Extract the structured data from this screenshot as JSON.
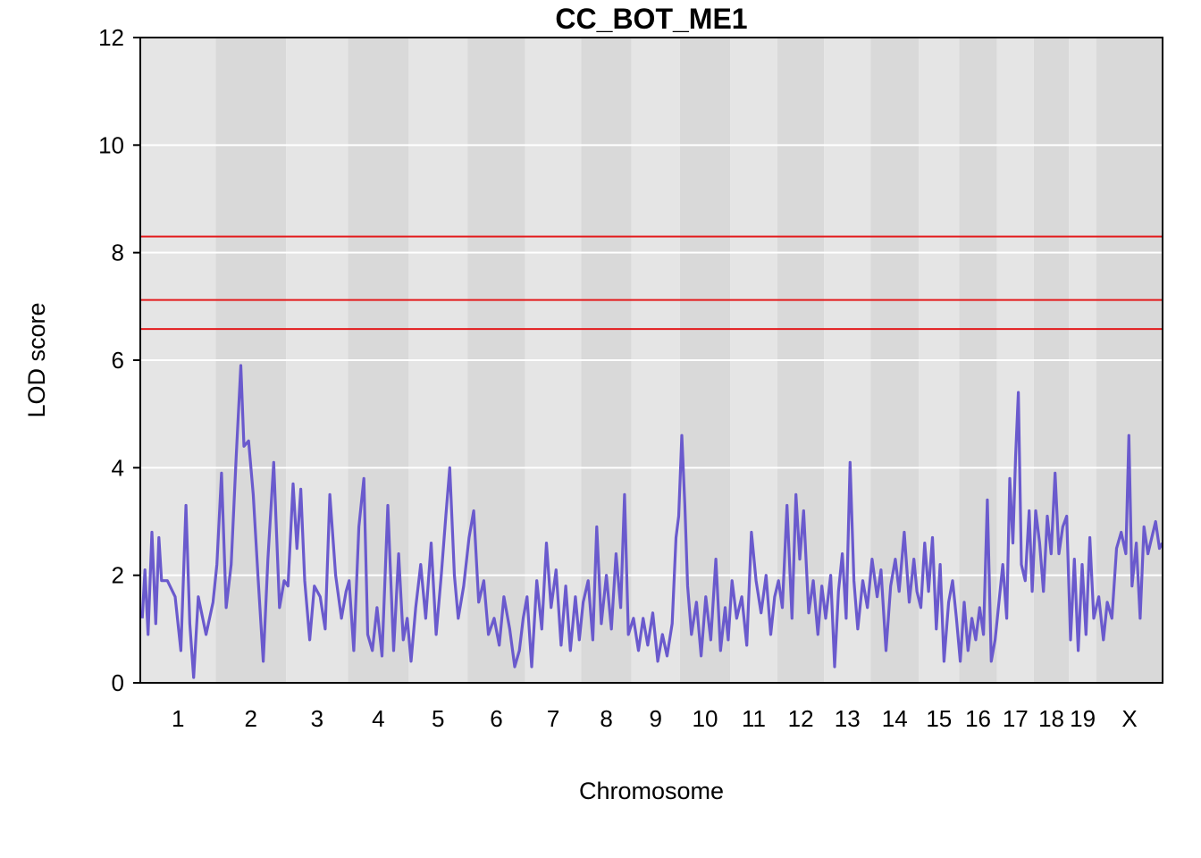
{
  "chart_data": {
    "type": "line",
    "title": "CC_BOT_ME1",
    "xlabel": "Chromosome",
    "ylabel": "LOD score",
    "ylim": [
      0,
      12
    ],
    "yticks": [
      0,
      2,
      4,
      6,
      8,
      10,
      12
    ],
    "chromosomes": [
      {
        "label": "1",
        "start": 0.0,
        "end": 195.0
      },
      {
        "label": "2",
        "start": 195.0,
        "end": 377.0
      },
      {
        "label": "3",
        "start": 377.0,
        "end": 537.0
      },
      {
        "label": "4",
        "start": 537.0,
        "end": 694.0
      },
      {
        "label": "5",
        "start": 694.0,
        "end": 846.0
      },
      {
        "label": "6",
        "start": 846.0,
        "end": 995.0
      },
      {
        "label": "7",
        "start": 995.0,
        "end": 1140.0
      },
      {
        "label": "8",
        "start": 1140.0,
        "end": 1270.0
      },
      {
        "label": "9",
        "start": 1270.0,
        "end": 1395.0
      },
      {
        "label": "10",
        "start": 1395.0,
        "end": 1525.0
      },
      {
        "label": "11",
        "start": 1525.0,
        "end": 1647.0
      },
      {
        "label": "12",
        "start": 1647.0,
        "end": 1768.0
      },
      {
        "label": "13",
        "start": 1768.0,
        "end": 1888.0
      },
      {
        "label": "14",
        "start": 1888.0,
        "end": 2013.0
      },
      {
        "label": "15",
        "start": 2013.0,
        "end": 2117.0
      },
      {
        "label": "16",
        "start": 2117.0,
        "end": 2215.0
      },
      {
        "label": "17",
        "start": 2215.0,
        "end": 2310.0
      },
      {
        "label": "18",
        "start": 2310.0,
        "end": 2401.0
      },
      {
        "label": "19",
        "start": 2401.0,
        "end": 2472.0
      },
      {
        "label": "X",
        "start": 2472.0,
        "end": 2643.0
      }
    ],
    "thresholds": [
      8.3,
      7.12,
      6.58
    ],
    "threshold_color": "#e31a1c",
    "line_color": "#6a5acd",
    "background_colors": [
      "#e5e5e5",
      "#d9d9d9"
    ],
    "grid": true,
    "series": [
      {
        "peaks": [
          [
            5,
            1.2
          ],
          [
            12,
            2.1
          ],
          [
            20,
            0.9
          ],
          [
            30,
            2.8
          ],
          [
            40,
            1.1
          ],
          [
            48,
            2.7
          ],
          [
            55,
            1.9
          ],
          [
            70,
            1.9
          ],
          [
            90,
            1.6
          ],
          [
            105,
            0.6
          ],
          [
            118,
            3.3
          ],
          [
            128,
            1.1
          ],
          [
            138,
            0.1
          ],
          [
            150,
            1.6
          ],
          [
            170,
            0.9
          ],
          [
            188,
            1.5
          ],
          [
            198,
            2.2
          ],
          [
            210,
            3.9
          ],
          [
            222,
            1.4
          ],
          [
            235,
            2.2
          ],
          [
            248,
            4.2
          ],
          [
            260,
            5.9
          ],
          [
            268,
            4.4
          ],
          [
            280,
            4.5
          ],
          [
            292,
            3.5
          ],
          [
            305,
            1.9
          ],
          [
            318,
            0.4
          ],
          [
            330,
            2.3
          ],
          [
            345,
            4.1
          ],
          [
            360,
            1.4
          ],
          [
            372,
            1.9
          ],
          [
            382,
            1.8
          ],
          [
            395,
            3.7
          ],
          [
            405,
            2.5
          ],
          [
            415,
            3.6
          ],
          [
            425,
            1.9
          ],
          [
            438,
            0.8
          ],
          [
            450,
            1.8
          ],
          [
            465,
            1.6
          ],
          [
            478,
            1.0
          ],
          [
            490,
            3.5
          ],
          [
            505,
            2.0
          ],
          [
            520,
            1.2
          ],
          [
            532,
            1.7
          ],
          [
            540,
            1.9
          ],
          [
            552,
            0.6
          ],
          [
            565,
            2.9
          ],
          [
            578,
            3.8
          ],
          [
            588,
            0.9
          ],
          [
            600,
            0.6
          ],
          [
            612,
            1.4
          ],
          [
            625,
            0.5
          ],
          [
            640,
            3.3
          ],
          [
            655,
            0.6
          ],
          [
            668,
            2.4
          ],
          [
            680,
            0.8
          ],
          [
            690,
            1.2
          ],
          [
            700,
            0.4
          ],
          [
            712,
            1.4
          ],
          [
            725,
            2.2
          ],
          [
            738,
            1.2
          ],
          [
            752,
            2.6
          ],
          [
            765,
            0.9
          ],
          [
            778,
            2.0
          ],
          [
            790,
            3.1
          ],
          [
            800,
            4.0
          ],
          [
            812,
            2.0
          ],
          [
            822,
            1.2
          ],
          [
            836,
            1.8
          ],
          [
            850,
            2.7
          ],
          [
            862,
            3.2
          ],
          [
            875,
            1.5
          ],
          [
            888,
            1.9
          ],
          [
            900,
            0.9
          ],
          [
            915,
            1.2
          ],
          [
            928,
            0.7
          ],
          [
            940,
            1.6
          ],
          [
            955,
            1.0
          ],
          [
            968,
            0.3
          ],
          [
            980,
            0.6
          ],
          [
            990,
            1.2
          ],
          [
            1000,
            1.6
          ],
          [
            1012,
            0.3
          ],
          [
            1025,
            1.9
          ],
          [
            1038,
            1.0
          ],
          [
            1050,
            2.6
          ],
          [
            1062,
            1.4
          ],
          [
            1075,
            2.1
          ],
          [
            1088,
            0.7
          ],
          [
            1100,
            1.8
          ],
          [
            1112,
            0.6
          ],
          [
            1125,
            1.6
          ],
          [
            1135,
            0.8
          ],
          [
            1145,
            1.5
          ],
          [
            1158,
            1.9
          ],
          [
            1170,
            0.8
          ],
          [
            1180,
            2.9
          ],
          [
            1192,
            1.1
          ],
          [
            1205,
            2.0
          ],
          [
            1218,
            1.0
          ],
          [
            1230,
            2.4
          ],
          [
            1242,
            1.4
          ],
          [
            1252,
            3.5
          ],
          [
            1262,
            0.9
          ],
          [
            1275,
            1.2
          ],
          [
            1288,
            0.6
          ],
          [
            1300,
            1.2
          ],
          [
            1312,
            0.7
          ],
          [
            1325,
            1.3
          ],
          [
            1338,
            0.4
          ],
          [
            1350,
            0.9
          ],
          [
            1362,
            0.5
          ],
          [
            1375,
            1.1
          ],
          [
            1385,
            2.7
          ],
          [
            1392,
            3.1
          ],
          [
            1400,
            4.6
          ],
          [
            1408,
            3.3
          ],
          [
            1415,
            1.8
          ],
          [
            1425,
            0.9
          ],
          [
            1438,
            1.5
          ],
          [
            1450,
            0.5
          ],
          [
            1462,
            1.6
          ],
          [
            1475,
            0.8
          ],
          [
            1488,
            2.3
          ],
          [
            1500,
            0.6
          ],
          [
            1512,
            1.4
          ],
          [
            1520,
            0.8
          ],
          [
            1530,
            1.9
          ],
          [
            1542,
            1.2
          ],
          [
            1555,
            1.6
          ],
          [
            1568,
            0.7
          ],
          [
            1580,
            2.8
          ],
          [
            1592,
            1.9
          ],
          [
            1605,
            1.3
          ],
          [
            1618,
            2.0
          ],
          [
            1630,
            0.9
          ],
          [
            1640,
            1.6
          ],
          [
            1650,
            1.9
          ],
          [
            1660,
            1.4
          ],
          [
            1672,
            3.3
          ],
          [
            1685,
            1.2
          ],
          [
            1695,
            3.5
          ],
          [
            1705,
            2.3
          ],
          [
            1715,
            3.2
          ],
          [
            1728,
            1.3
          ],
          [
            1740,
            1.9
          ],
          [
            1752,
            0.9
          ],
          [
            1762,
            1.8
          ],
          [
            1772,
            1.2
          ],
          [
            1785,
            2.0
          ],
          [
            1795,
            0.3
          ],
          [
            1805,
            1.7
          ],
          [
            1815,
            2.4
          ],
          [
            1825,
            1.2
          ],
          [
            1835,
            4.1
          ],
          [
            1845,
            1.9
          ],
          [
            1855,
            1.0
          ],
          [
            1868,
            1.9
          ],
          [
            1880,
            1.4
          ],
          [
            1892,
            2.3
          ],
          [
            1905,
            1.6
          ],
          [
            1915,
            2.1
          ],
          [
            1928,
            0.6
          ],
          [
            1940,
            1.8
          ],
          [
            1952,
            2.3
          ],
          [
            1962,
            1.7
          ],
          [
            1975,
            2.8
          ],
          [
            1988,
            1.5
          ],
          [
            2000,
            2.3
          ],
          [
            2008,
            1.7
          ],
          [
            2018,
            1.4
          ],
          [
            2028,
            2.6
          ],
          [
            2038,
            1.7
          ],
          [
            2048,
            2.7
          ],
          [
            2058,
            1.0
          ],
          [
            2068,
            2.2
          ],
          [
            2078,
            0.4
          ],
          [
            2090,
            1.5
          ],
          [
            2100,
            1.9
          ],
          [
            2110,
            1.2
          ],
          [
            2120,
            0.4
          ],
          [
            2130,
            1.5
          ],
          [
            2140,
            0.6
          ],
          [
            2150,
            1.2
          ],
          [
            2160,
            0.8
          ],
          [
            2170,
            1.4
          ],
          [
            2180,
            0.9
          ],
          [
            2190,
            3.4
          ],
          [
            2200,
            0.4
          ],
          [
            2210,
            0.8
          ],
          [
            2220,
            1.5
          ],
          [
            2230,
            2.2
          ],
          [
            2240,
            1.2
          ],
          [
            2248,
            3.8
          ],
          [
            2256,
            2.6
          ],
          [
            2263,
            4.2
          ],
          [
            2270,
            5.4
          ],
          [
            2278,
            2.2
          ],
          [
            2288,
            1.9
          ],
          [
            2298,
            3.2
          ],
          [
            2306,
            1.7
          ],
          [
            2315,
            3.2
          ],
          [
            2325,
            2.6
          ],
          [
            2335,
            1.7
          ],
          [
            2345,
            3.1
          ],
          [
            2355,
            2.4
          ],
          [
            2365,
            3.9
          ],
          [
            2375,
            2.4
          ],
          [
            2385,
            2.9
          ],
          [
            2395,
            3.1
          ],
          [
            2405,
            0.8
          ],
          [
            2415,
            2.3
          ],
          [
            2425,
            0.6
          ],
          [
            2435,
            2.2
          ],
          [
            2445,
            0.9
          ],
          [
            2455,
            2.7
          ],
          [
            2465,
            1.2
          ],
          [
            2478,
            1.6
          ],
          [
            2490,
            0.8
          ],
          [
            2500,
            1.5
          ],
          [
            2512,
            1.2
          ],
          [
            2524,
            2.5
          ],
          [
            2536,
            2.8
          ],
          [
            2548,
            2.4
          ],
          [
            2556,
            4.6
          ],
          [
            2564,
            1.8
          ],
          [
            2575,
            2.6
          ],
          [
            2585,
            1.2
          ],
          [
            2595,
            2.9
          ],
          [
            2605,
            2.4
          ],
          [
            2615,
            2.7
          ],
          [
            2625,
            3.0
          ],
          [
            2635,
            2.5
          ],
          [
            2642,
            2.6
          ]
        ]
      }
    ]
  }
}
